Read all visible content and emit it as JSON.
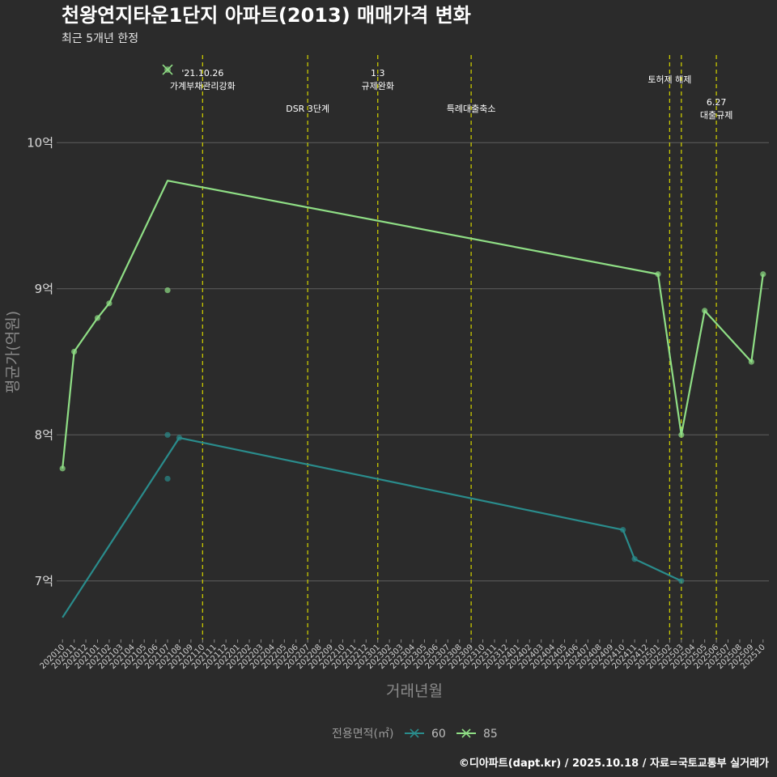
{
  "chart_data": {
    "type": "line",
    "title": "천왕연지타운1단지 아파트(2013) 매매가격 변화",
    "subtitle": "최근 5개년 한정",
    "xlabel": "거래년월",
    "ylabel": "평균가(억원)",
    "ylim": [
      6.6,
      10.6
    ],
    "yticks": [
      7,
      8,
      9,
      10
    ],
    "ytick_labels": [
      "7억",
      "8억",
      "9억",
      "10억"
    ],
    "categories": [
      "202010",
      "202011",
      "202012",
      "202101",
      "202102",
      "202103",
      "202104",
      "202105",
      "202106",
      "202107",
      "202108",
      "202109",
      "202110",
      "202111",
      "202112",
      "202201",
      "202202",
      "202203",
      "202204",
      "202205",
      "202206",
      "202207",
      "202208",
      "202209",
      "202210",
      "202211",
      "202212",
      "202301",
      "202302",
      "202303",
      "202304",
      "202305",
      "202306",
      "202307",
      "202308",
      "202309",
      "202310",
      "202311",
      "202312",
      "202401",
      "202402",
      "202403",
      "202404",
      "202405",
      "202406",
      "202407",
      "202408",
      "202409",
      "202410",
      "202411",
      "202412",
      "202501",
      "202502",
      "202503",
      "202504",
      "202505",
      "202506",
      "202507",
      "202508",
      "202509",
      "202510"
    ],
    "series": [
      {
        "name": "60",
        "color": "#2a8c8c",
        "line": [
          {
            "x": "202010",
            "y": 6.75
          },
          {
            "x": "202108",
            "y": 7.98
          },
          {
            "x": "202410",
            "y": 7.35
          },
          {
            "x": "202411",
            "y": 7.15
          },
          {
            "x": "202503",
            "y": 7.0
          }
        ],
        "points": [
          {
            "x": "202107",
            "y": 8.0
          },
          {
            "x": "202107",
            "y": 7.7
          },
          {
            "x": "202108",
            "y": 7.98
          },
          {
            "x": "202410",
            "y": 7.35
          },
          {
            "x": "202411",
            "y": 7.15
          },
          {
            "x": "202503",
            "y": 7.0
          }
        ]
      },
      {
        "name": "85",
        "color": "#8fde85",
        "line": [
          {
            "x": "202010",
            "y": 7.77
          },
          {
            "x": "202011",
            "y": 8.57
          },
          {
            "x": "202101",
            "y": 8.8
          },
          {
            "x": "202102",
            "y": 8.9
          },
          {
            "x": "202107",
            "y": 9.74
          },
          {
            "x": "202501",
            "y": 9.1
          },
          {
            "x": "202503",
            "y": 8.0
          },
          {
            "x": "202505",
            "y": 8.85
          },
          {
            "x": "202509",
            "y": 8.5
          },
          {
            "x": "202510",
            "y": 9.1
          }
        ],
        "points": [
          {
            "x": "202010",
            "y": 7.77
          },
          {
            "x": "202011",
            "y": 8.57
          },
          {
            "x": "202101",
            "y": 8.8
          },
          {
            "x": "202102",
            "y": 8.9
          },
          {
            "x": "202107",
            "y": 8.99
          },
          {
            "x": "202501",
            "y": 9.1
          },
          {
            "x": "202503",
            "y": 8.0
          },
          {
            "x": "202505",
            "y": 8.85
          },
          {
            "x": "202509",
            "y": 8.5
          },
          {
            "x": "202510",
            "y": 9.1
          }
        ],
        "outlier_marker": {
          "x": "202107",
          "y": 10.5
        }
      }
    ],
    "events": [
      {
        "x": "202110",
        "lines": [
          "'21.10.26",
          "가계부채관리강화"
        ],
        "level": "high"
      },
      {
        "x": "202207",
        "lines": [
          "DSR 3단계"
        ],
        "level": "low"
      },
      {
        "x": "202301",
        "lines": [
          "1.3",
          "규제완화"
        ],
        "level": "high"
      },
      {
        "x": "202309",
        "lines": [
          "특례대출축소"
        ],
        "level": "low"
      },
      {
        "x": "202502",
        "lines": [
          "토허제 해제"
        ],
        "level": "mid"
      },
      {
        "x": "202503",
        "lines": [],
        "level": "none"
      },
      {
        "x": "202506",
        "lines": [
          "6.27",
          "대출규제"
        ],
        "level": "lowest"
      }
    ],
    "legend": {
      "title": "전용면적(㎡)",
      "placement": "bottom"
    }
  },
  "caption": "©디아파트(dapt.kr) / 2025.10.18 / 자료=국토교통부 실거래가",
  "colors": {
    "background": "#2b2b2b",
    "grid": "#5e5e5e",
    "event_line": "#c8c800",
    "series_60": "#2a8c8c",
    "series_85": "#8fde85"
  }
}
